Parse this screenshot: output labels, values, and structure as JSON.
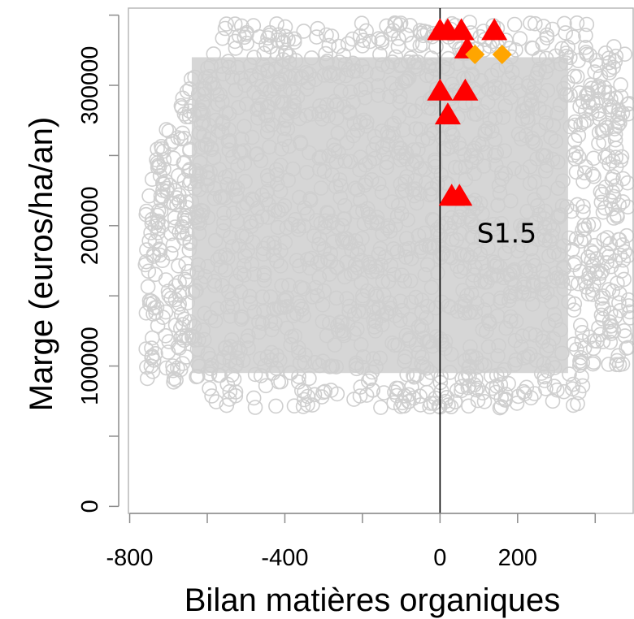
{
  "chart_data": {
    "type": "scatter",
    "xlabel": "Bilan matières organiques",
    "ylabel": "Marge (euros/ha/an)",
    "xlim": [
      -820,
      500
    ],
    "ylim": [
      -5000,
      355000
    ],
    "xticks": [
      -800,
      -600,
      -400,
      -200,
      0,
      200,
      400
    ],
    "xtick_labels": [
      "-800",
      "",
      "-400",
      "",
      "0",
      "200",
      ""
    ],
    "yticks": [
      0,
      50000,
      100000,
      150000,
      200000,
      250000,
      300000,
      350000
    ],
    "ytick_labels": [
      "0",
      "",
      "100000",
      "",
      "200000",
      "",
      "300000",
      ""
    ],
    "vline_x": 0,
    "grid": false,
    "colors": {
      "background_points": "#cfcfcf",
      "triangles": "#ff0000",
      "diamonds": "#ffa500"
    },
    "background_cloud": {
      "x_range": [
        -760,
        490
      ],
      "y_range": [
        70000,
        345000
      ],
      "marker": "open-circle"
    },
    "series": [
      {
        "marker": "triangle",
        "points": [
          {
            "x": 0,
            "y": 340000
          },
          {
            "x": 20,
            "y": 340000
          },
          {
            "x": 55,
            "y": 340000
          },
          {
            "x": 140,
            "y": 340000
          },
          {
            "x": 70,
            "y": 327000
          },
          {
            "x": 0,
            "y": 297000
          },
          {
            "x": 65,
            "y": 297000
          },
          {
            "x": 20,
            "y": 280000
          },
          {
            "x": 30,
            "y": 222000
          },
          {
            "x": 50,
            "y": 222000
          }
        ]
      },
      {
        "marker": "diamond",
        "points": [
          {
            "x": 90,
            "y": 322000
          },
          {
            "x": 160,
            "y": 322000
          }
        ]
      }
    ],
    "annotations": [
      {
        "text": "S1.5",
        "x": 95,
        "y": 188000
      }
    ]
  }
}
